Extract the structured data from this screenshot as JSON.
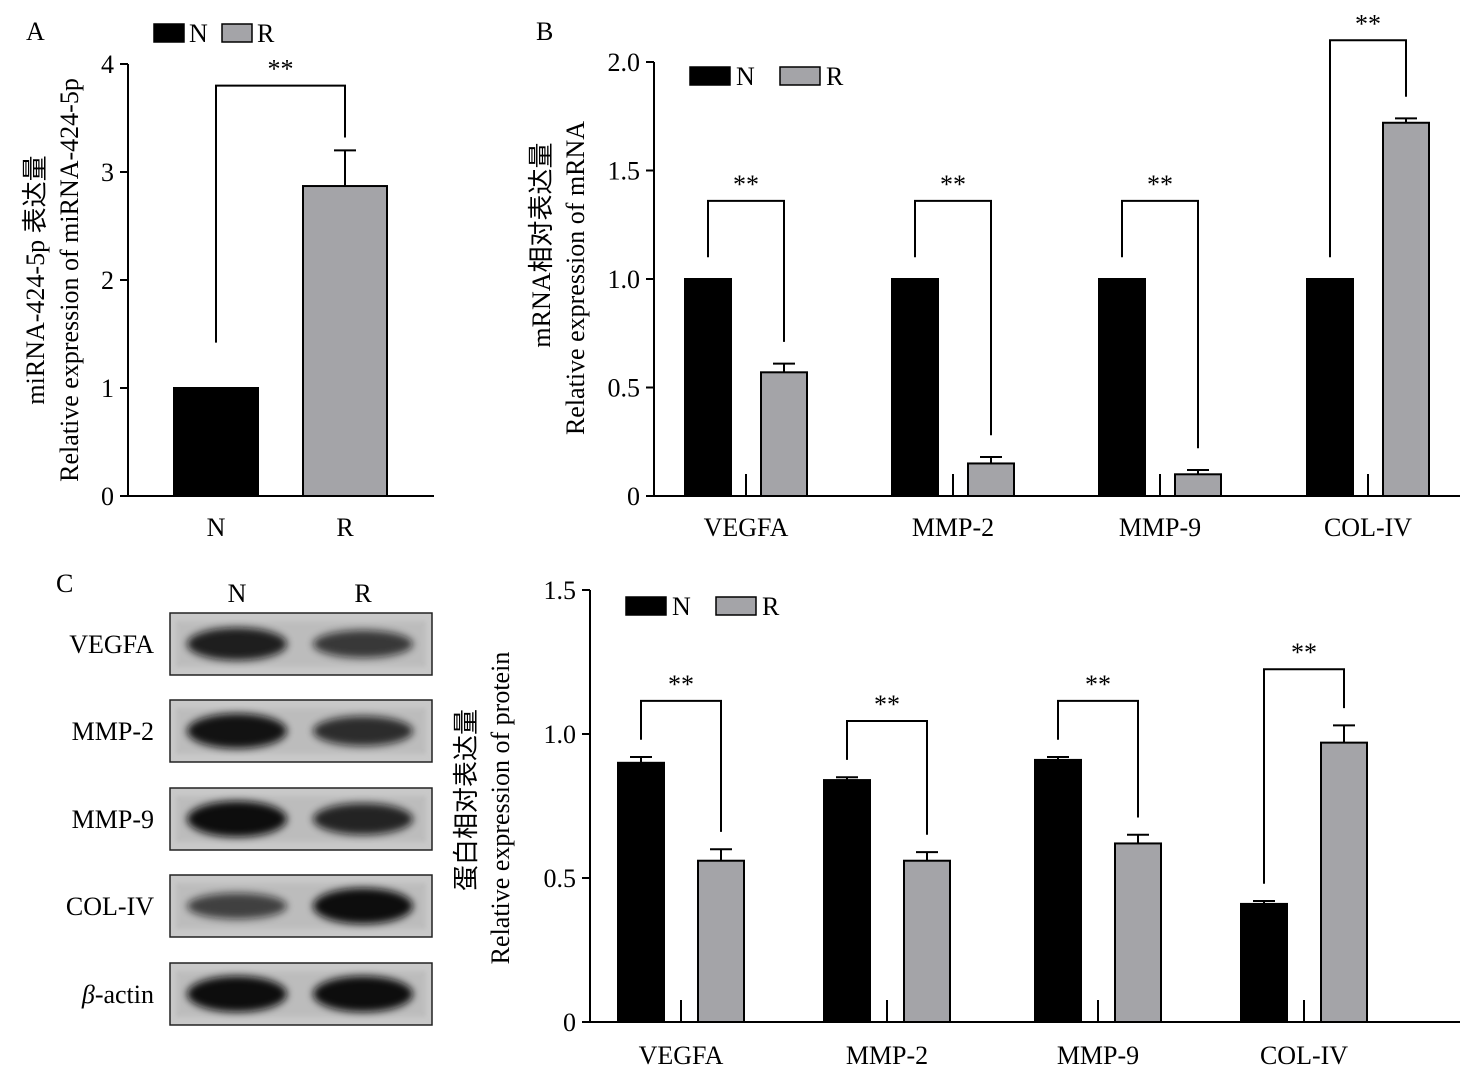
{
  "colors": {
    "N": "#000000",
    "R": "#a4a4a8",
    "axis": "#000000"
  },
  "sig_text": "**",
  "chart_data": [
    {
      "id": "A",
      "panel_label": "A",
      "type": "bar",
      "categories": [
        "N",
        "R"
      ],
      "values": [
        1.0,
        2.87
      ],
      "errors": [
        0,
        0.33
      ],
      "colors": [
        "#000000",
        "#a4a4a8"
      ],
      "ylim": [
        0,
        4
      ],
      "yticks": [
        "0",
        "1",
        "2",
        "3",
        "4"
      ],
      "ylabel": "miRNA-424-5p 表达量",
      "ylabel2": "Relative expression of miRNA-424-5p",
      "legend": [
        {
          "name": "N",
          "color": "#000000"
        },
        {
          "name": "R",
          "color": "#a4a4a8"
        }
      ],
      "legend_position": "top-left",
      "significance": [
        "**"
      ]
    },
    {
      "id": "B",
      "panel_label": "B",
      "type": "bar",
      "categories": [
        "VEGFA",
        "MMP-2",
        "MMP-9",
        "COL-IV"
      ],
      "series": [
        {
          "name": "N",
          "values": [
            1.0,
            1.0,
            1.0,
            1.0
          ],
          "errors": [
            0,
            0,
            0,
            0
          ]
        },
        {
          "name": "R",
          "values": [
            0.57,
            0.15,
            0.1,
            1.72
          ],
          "errors": [
            0.04,
            0.03,
            0.02,
            0.02
          ]
        }
      ],
      "ylim": [
        0,
        2.0
      ],
      "yticks": [
        "0",
        "0.5",
        "1.0",
        "1.5",
        "2.0"
      ],
      "ylabel": "mRNA相对表达量",
      "ylabel2": "Relative expression of mRNA",
      "legend_position": "top-left",
      "significance": [
        "**",
        "**",
        "**",
        "**"
      ]
    },
    {
      "id": "C",
      "panel_label": "",
      "type": "bar",
      "categories": [
        "VEGFA",
        "MMP-2",
        "MMP-9",
        "COL-IV"
      ],
      "series": [
        {
          "name": "N",
          "values": [
            0.9,
            0.84,
            0.91,
            0.41
          ],
          "errors": [
            0.02,
            0.01,
            0.01,
            0.01
          ]
        },
        {
          "name": "R",
          "values": [
            0.56,
            0.56,
            0.62,
            0.97
          ],
          "errors": [
            0.04,
            0.03,
            0.03,
            0.06
          ]
        }
      ],
      "ylim": [
        0,
        1.5
      ],
      "yticks": [
        "0",
        "0.5",
        "1.0",
        "1.5"
      ],
      "ylabel": "蛋白相对表达量",
      "ylabel2": "Relative expression of protein",
      "legend_position": "top-left",
      "significance": [
        "**",
        "**",
        "**",
        "**"
      ]
    }
  ],
  "western_blot": {
    "panel_label": "C",
    "lanes": [
      "N",
      "R"
    ],
    "rows": [
      "VEGFA",
      "MMP-2",
      "MMP-9",
      "COL-IV",
      "β-actin"
    ],
    "band_intensity": [
      [
        0.85,
        0.62
      ],
      [
        0.95,
        0.72
      ],
      [
        1.0,
        0.8
      ],
      [
        0.55,
        1.0
      ],
      [
        1.0,
        1.0
      ]
    ]
  }
}
